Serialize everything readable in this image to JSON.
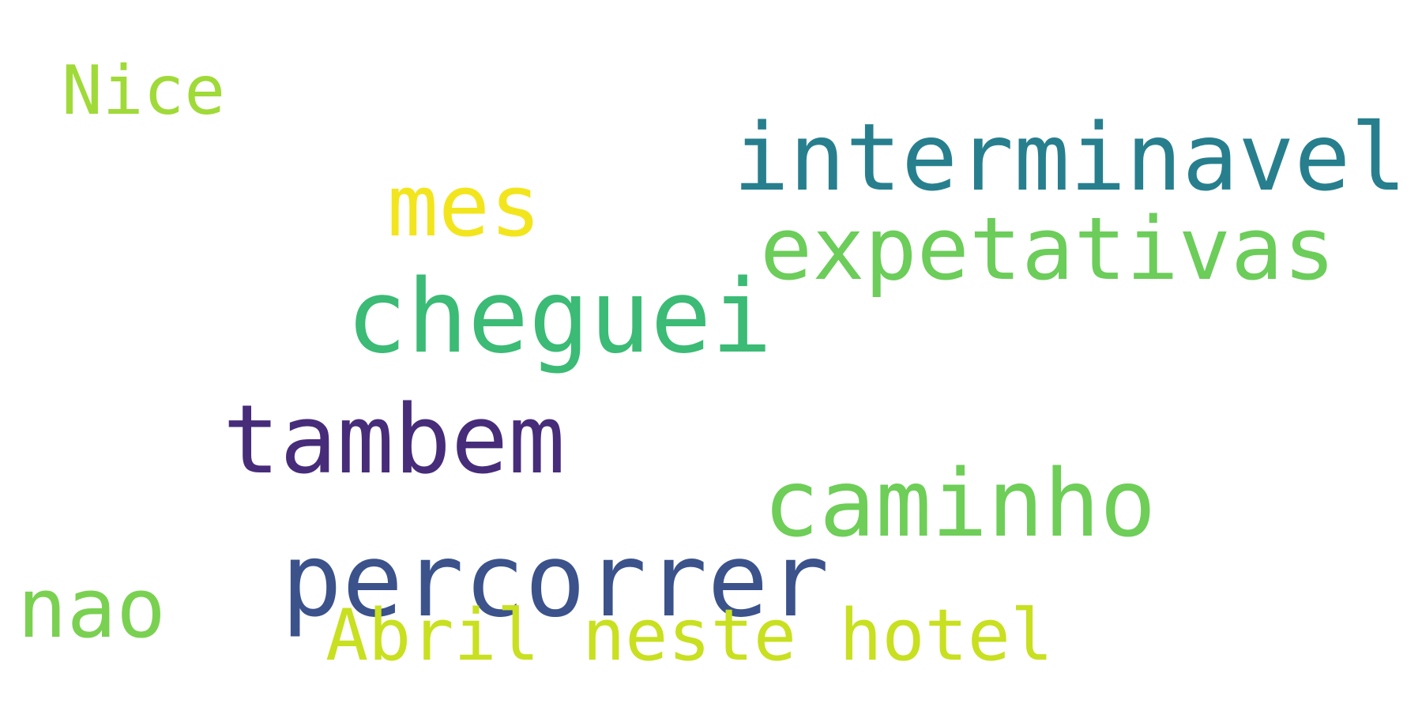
{
  "word_cloud": {
    "words": [
      {
        "id": "nice",
        "text": "Nice",
        "color": "#a0da39"
      },
      {
        "id": "interminavel",
        "text": "interminavel",
        "color": "#277f8e"
      },
      {
        "id": "mes",
        "text": "mes",
        "color": "#f2e51d"
      },
      {
        "id": "expetativas",
        "text": "expetativas",
        "color": "#6ccd5a"
      },
      {
        "id": "cheguei",
        "text": "cheguei",
        "color": "#3bbb75"
      },
      {
        "id": "tambem",
        "text": "tambem",
        "color": "#472c7a"
      },
      {
        "id": "caminho",
        "text": "caminho",
        "color": "#6ece58"
      },
      {
        "id": "percorrer",
        "text": "percorrer",
        "color": "#3b528b"
      },
      {
        "id": "nao",
        "text": "nao",
        "color": "#7ad151"
      },
      {
        "id": "abril",
        "text": "Abril neste hotel",
        "color": "#c8e020"
      }
    ]
  }
}
